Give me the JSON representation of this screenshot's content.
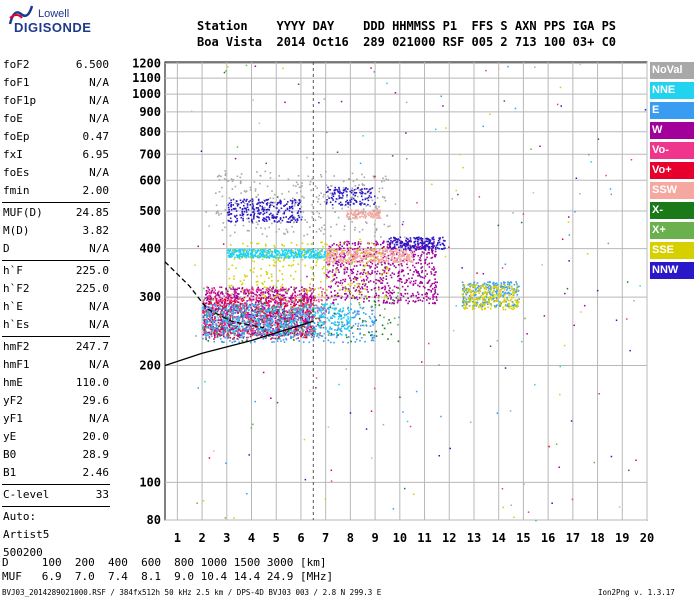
{
  "logo": {
    "line1": "Lowell",
    "line2": "DIGISONDE"
  },
  "header": {
    "row1": "Station    YYYY DAY    DDD HHMMSS P1  FFS S AXN PPS IGA PS",
    "row2": "Boa Vista  2014 Oct16  289 021000 RSF 005 2 713 100 03+ C0"
  },
  "sidebar": {
    "group1": [
      {
        "label": "foF2",
        "value": "6.500"
      },
      {
        "label": "foF1",
        "value": "N/A"
      },
      {
        "label": "foF1p",
        "value": "N/A"
      },
      {
        "label": "foE",
        "value": "N/A"
      },
      {
        "label": "foEp",
        "value": "0.47"
      },
      {
        "label": "fxI",
        "value": "6.95"
      },
      {
        "label": "foEs",
        "value": "N/A"
      },
      {
        "label": "fmin",
        "value": "2.00"
      }
    ],
    "group2": [
      {
        "label": "MUF(D)",
        "value": "24.85"
      },
      {
        "label": "M(D)",
        "value": "3.82"
      },
      {
        "label": "D",
        "value": "N/A"
      }
    ],
    "group3": [
      {
        "label": "h`F",
        "value": "225.0"
      },
      {
        "label": "h`F2",
        "value": "225.0"
      },
      {
        "label": "h`E",
        "value": "N/A"
      },
      {
        "label": "h`Es",
        "value": "N/A"
      }
    ],
    "group4": [
      {
        "label": "hmF2",
        "value": "247.7"
      },
      {
        "label": "hmF1",
        "value": "N/A"
      },
      {
        "label": "hmE",
        "value": "110.0"
      },
      {
        "label": "yF2",
        "value": "29.6"
      },
      {
        "label": "yF1",
        "value": "N/A"
      },
      {
        "label": "yE",
        "value": "20.0"
      },
      {
        "label": "B0",
        "value": "28.9"
      },
      {
        "label": "B1",
        "value": "2.46"
      }
    ],
    "clevel": {
      "label": "C-level",
      "value": "33"
    },
    "auto": [
      "Auto:",
      "Artist5",
      "500200"
    ]
  },
  "legend": [
    {
      "label": "NoVal",
      "color": "#a8a8a8"
    },
    {
      "label": "NNE",
      "color": "#22d3f0"
    },
    {
      "label": "E",
      "color": "#3a9cf0"
    },
    {
      "label": "W",
      "color": "#a2009a"
    },
    {
      "label": "Vo-",
      "color": "#f0368c"
    },
    {
      "label": "Vo+",
      "color": "#e8002c"
    },
    {
      "label": "SSW",
      "color": "#f4a8a0"
    },
    {
      "label": "X-",
      "color": "#1a7a1a"
    },
    {
      "label": "X+",
      "color": "#6ab04c"
    },
    {
      "label": "SSE",
      "color": "#d6d000"
    },
    {
      "label": "NNW",
      "color": "#2a18c8"
    }
  ],
  "dm_table": {
    "d_row": "D     100  200  400  600  800 1000 1500 3000 [km]",
    "muf_row": "MUF   6.9  7.0  7.4  8.1  9.0 10.4 14.4 24.9 [MHz]"
  },
  "footer": {
    "left": "BVJ03_2014289021000.RSF / 384fx512h 50 kHz 2.5 km / DPS-4D BVJ03 003 / 2.8 N 299.3 E",
    "right": "Ion2Png v. 1.3.17"
  },
  "chart_data": {
    "type": "scatter",
    "xlabel": "",
    "ylabel": "",
    "xlim": [
      0.5,
      20
    ],
    "ylim": [
      80,
      1210
    ],
    "x_ticks": [
      1,
      2,
      3,
      4,
      5,
      6,
      7,
      8,
      9,
      10,
      11,
      12,
      13,
      14,
      15,
      16,
      17,
      18,
      19,
      20
    ],
    "y_ticks": [
      80,
      100,
      200,
      300,
      400,
      500,
      600,
      700,
      800,
      900,
      1000,
      1100,
      1200
    ],
    "y_scale": "log",
    "grid": true,
    "dashed_vertical_at": 6.5,
    "clusters": [
      {
        "name": "W",
        "color": "#a2009a",
        "x": [
          2.0,
          6.5
        ],
        "y": [
          240,
          320
        ],
        "n": 900
      },
      {
        "name": "W",
        "color": "#a2009a",
        "x": [
          7.0,
          11.5
        ],
        "y": [
          290,
          420
        ],
        "n": 700
      },
      {
        "name": "Vo+",
        "color": "#e8002c",
        "x": [
          2.0,
          6.5
        ],
        "y": [
          235,
          300
        ],
        "n": 500
      },
      {
        "name": "Vo-",
        "color": "#f0368c",
        "x": [
          2.0,
          7.0
        ],
        "y": [
          240,
          320
        ],
        "n": 400
      },
      {
        "name": "SSW",
        "color": "#f4a8a0",
        "x": [
          7.0,
          10.5
        ],
        "y": [
          370,
          400
        ],
        "n": 350
      },
      {
        "name": "SSW",
        "color": "#f4a8a0",
        "x": [
          7.8,
          9.2
        ],
        "y": [
          480,
          505
        ],
        "n": 120
      },
      {
        "name": "NNE",
        "color": "#22d3f0",
        "x": [
          3.0,
          7.0
        ],
        "y": [
          380,
          400
        ],
        "n": 450
      },
      {
        "name": "NNE",
        "color": "#22d3f0",
        "x": [
          2.0,
          8.0
        ],
        "y": [
          240,
          290
        ],
        "n": 500
      },
      {
        "name": "E",
        "color": "#3a9cf0",
        "x": [
          2.0,
          9.0
        ],
        "y": [
          230,
          285
        ],
        "n": 450
      },
      {
        "name": "E",
        "color": "#3a9cf0",
        "x": [
          12.5,
          14.8
        ],
        "y": [
          285,
          330
        ],
        "n": 250
      },
      {
        "name": "NoVal",
        "color": "#a8a8a8",
        "x": [
          2.5,
          9.5
        ],
        "y": [
          430,
          640
        ],
        "n": 300
      },
      {
        "name": "SSE",
        "color": "#d6d000",
        "x": [
          12.5,
          14.8
        ],
        "y": [
          280,
          325
        ],
        "n": 250
      },
      {
        "name": "SSE",
        "color": "#d6d000",
        "x": [
          3.0,
          9.5
        ],
        "y": [
          300,
          420
        ],
        "n": 250
      },
      {
        "name": "NNW",
        "color": "#2a18c8",
        "x": [
          3.0,
          6.0
        ],
        "y": [
          470,
          540
        ],
        "n": 250
      },
      {
        "name": "NNW",
        "color": "#2a18c8",
        "x": [
          7.0,
          9.0
        ],
        "y": [
          520,
          580
        ],
        "n": 120
      },
      {
        "name": "NNW",
        "color": "#2a18c8",
        "x": [
          9.5,
          11.8
        ],
        "y": [
          400,
          430
        ],
        "n": 200
      },
      {
        "name": "X-",
        "color": "#1a7a1a",
        "x": [
          2.0,
          10.0
        ],
        "y": [
          230,
          300
        ],
        "n": 80
      },
      {
        "name": "X+",
        "color": "#6ab04c",
        "x": [
          2.0,
          10.0
        ],
        "y": [
          240,
          320
        ],
        "n": 80
      }
    ],
    "profile_curves": [
      {
        "points": [
          [
            0.5,
            200
          ],
          [
            2,
            215
          ],
          [
            4,
            232
          ],
          [
            6.5,
            260
          ]
        ]
      },
      {
        "dashed": true,
        "points": [
          [
            0.5,
            370
          ],
          [
            1.5,
            320
          ],
          [
            2.2,
            280
          ],
          [
            3.2,
            260
          ],
          [
            4.5,
            250
          ]
        ]
      }
    ]
  }
}
